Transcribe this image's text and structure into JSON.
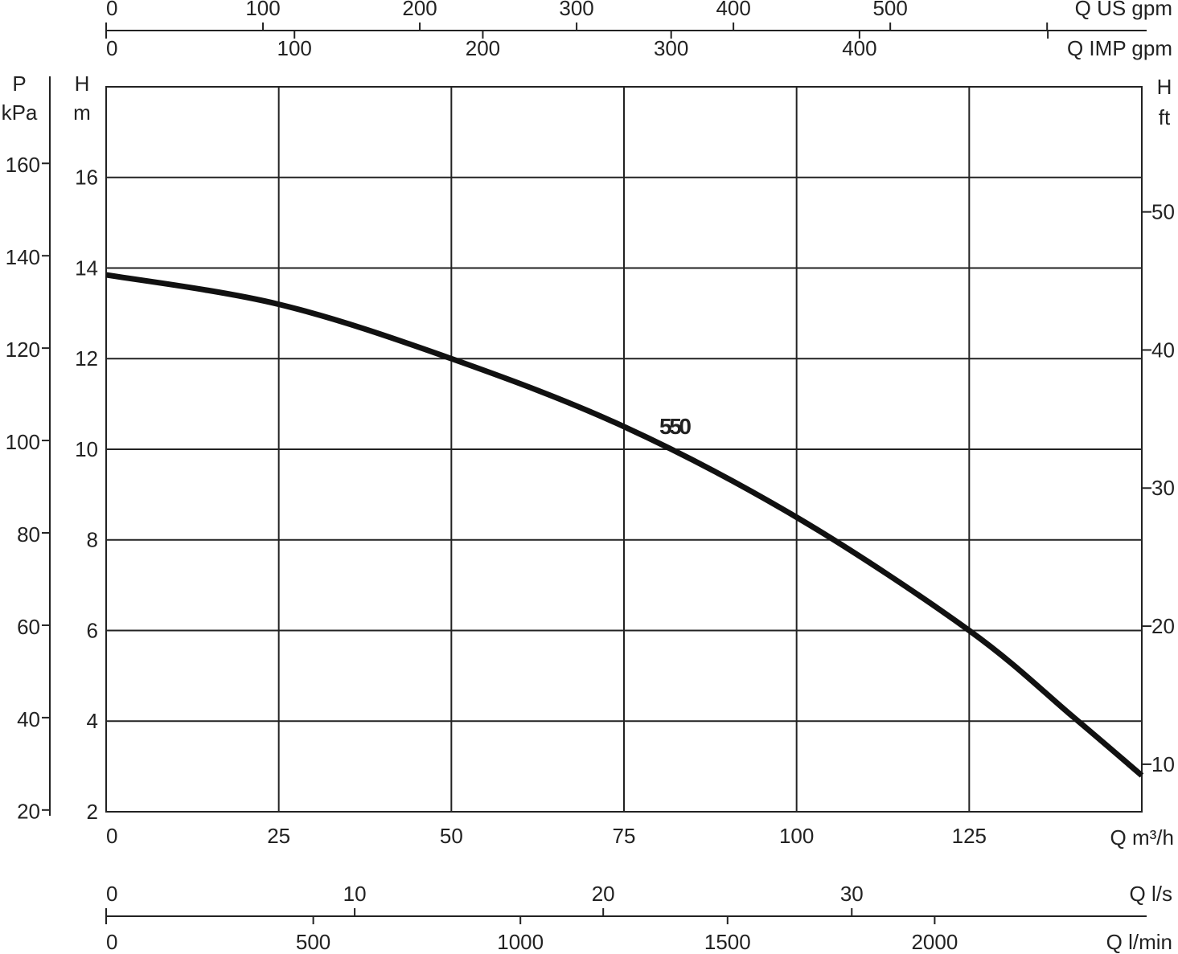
{
  "chart_data": {
    "type": "line",
    "x": [
      0,
      25,
      50,
      75,
      100,
      125,
      140,
      150
    ],
    "series": [
      {
        "name": "550",
        "color": "#111111",
        "values": [
          13.85,
          13.2,
          12.0,
          10.5,
          8.5,
          6.0,
          4.1,
          2.8
        ]
      }
    ],
    "xlim": [
      0,
      150
    ],
    "xticks": [
      0,
      25,
      50,
      75,
      100,
      125
    ],
    "x_label": "Q m³/h",
    "ylim": [
      2,
      18
    ],
    "yticks": [
      2,
      4,
      6,
      8,
      10,
      12,
      14,
      16
    ],
    "y_label": [
      "H",
      "m"
    ],
    "grid": true,
    "extra_axes": [
      {
        "side": "left",
        "label": [
          "P",
          "kPa"
        ],
        "lim": [
          19.62,
          176.58
        ],
        "ticks": [
          20,
          40,
          60,
          80,
          100,
          120,
          140,
          160
        ]
      },
      {
        "side": "right",
        "label": [
          "H",
          "ft"
        ],
        "lim": [
          6.56,
          59.06
        ],
        "ticks": [
          10,
          20,
          30,
          40,
          50
        ]
      },
      {
        "side": "top",
        "label": "Q US gpm",
        "lim": [
          0,
          660.4
        ],
        "ticks": [
          0,
          100,
          200,
          300,
          400,
          500,
          {
            "value": 600,
            "label": null
          }
        ]
      },
      {
        "side": "top2",
        "label": "Q IMP gpm",
        "lim": [
          0,
          549.9
        ],
        "ticks": [
          0,
          100,
          200,
          300,
          400,
          {
            "value": 500,
            "label": null
          }
        ]
      },
      {
        "side": "bottom",
        "label": "Q l/s",
        "lim": [
          0,
          41.67
        ],
        "ticks": [
          0,
          10,
          20,
          30
        ]
      },
      {
        "side": "bottom2",
        "label": "Q l/min",
        "lim": [
          0,
          2500
        ],
        "ticks": [
          0,
          500,
          1000,
          1500,
          2000
        ]
      }
    ]
  }
}
